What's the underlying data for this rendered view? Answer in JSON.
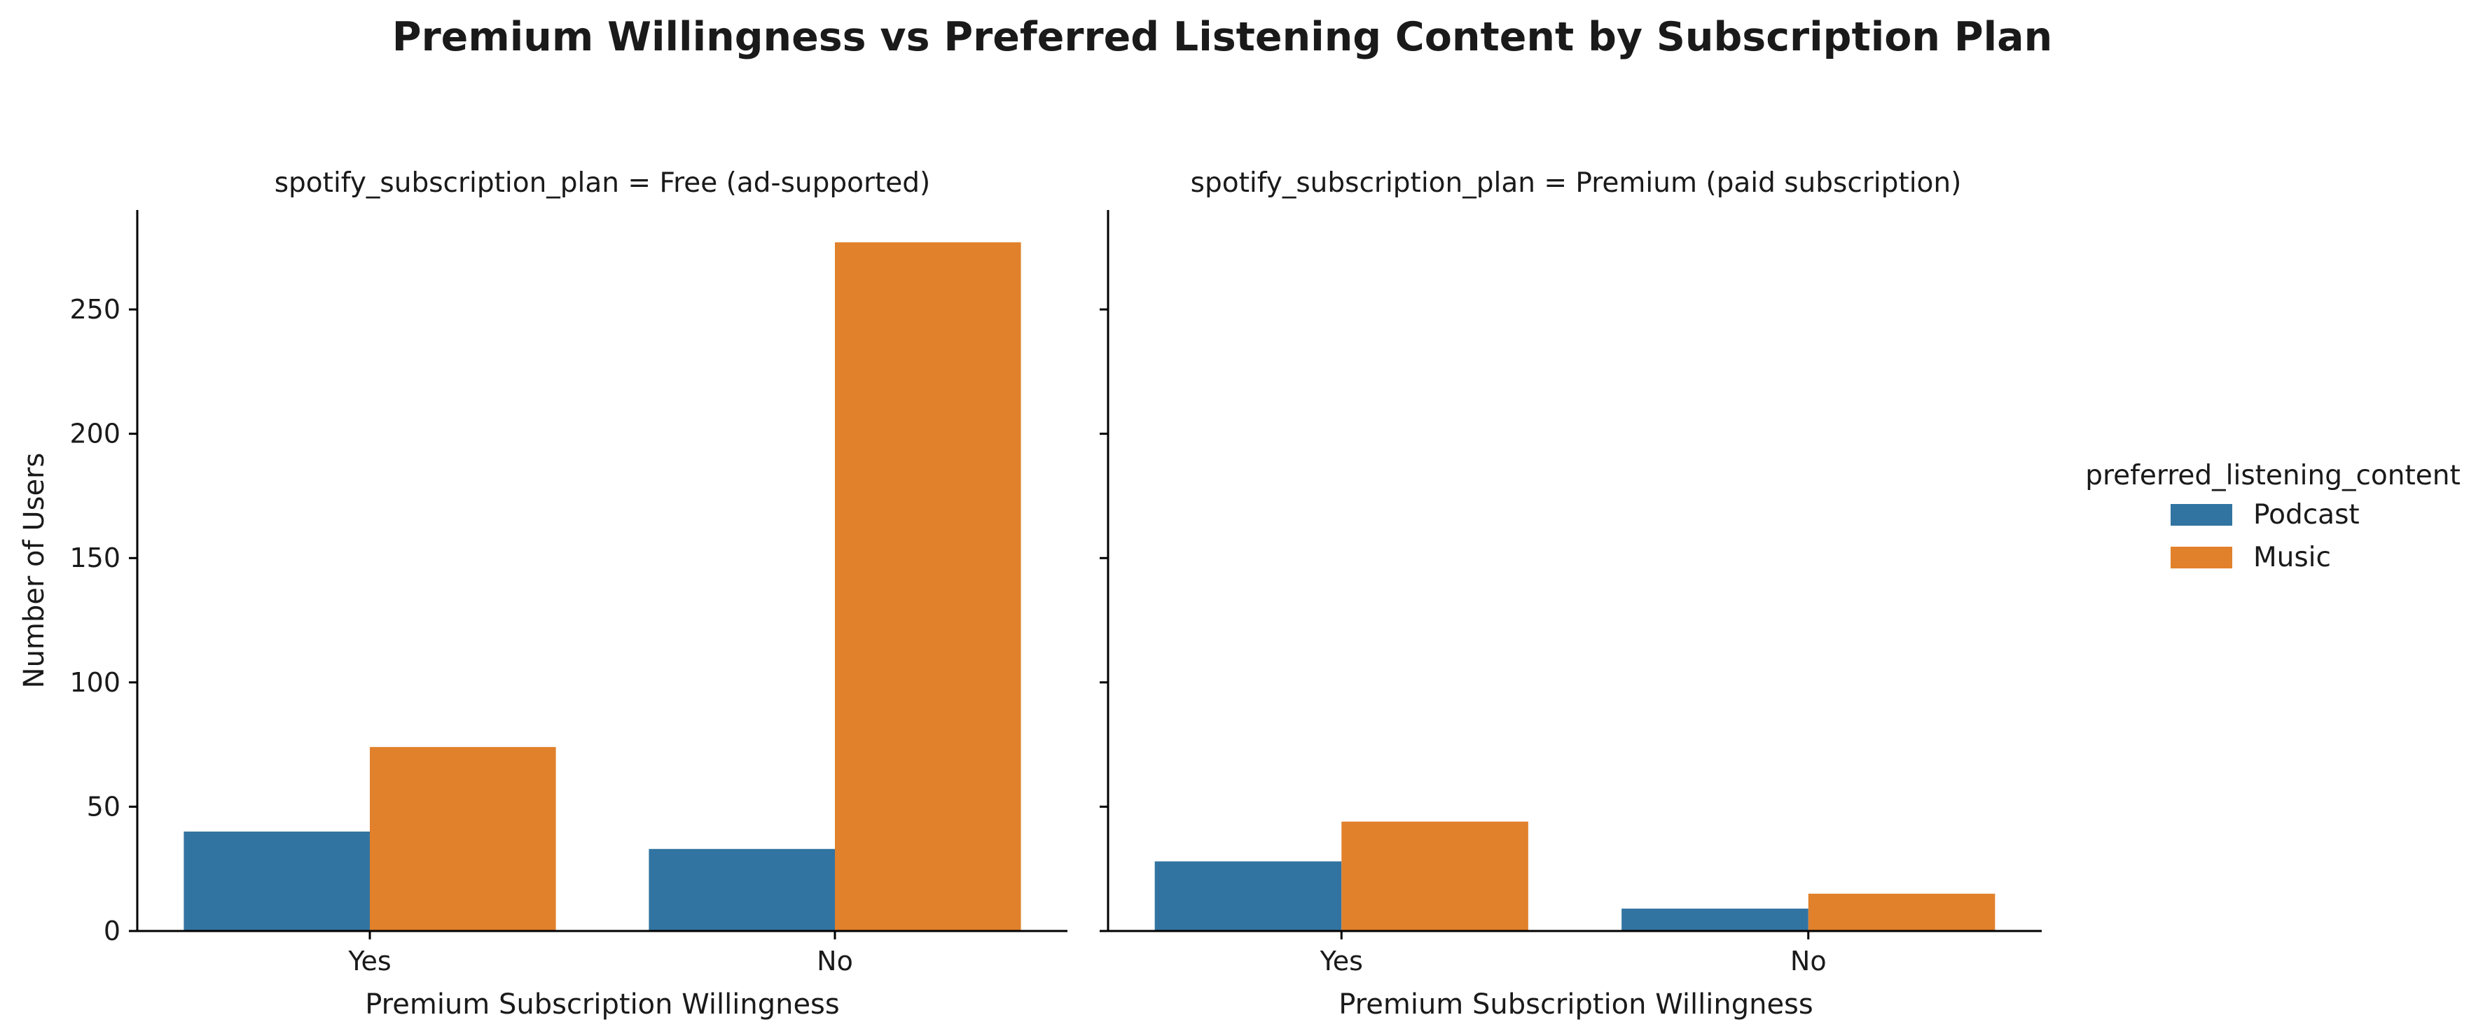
{
  "chart_data": {
    "type": "bar",
    "title": "Premium Willingness vs Preferred Listening Content by Subscription Plan",
    "xlabel": "Premium Subscription Willingness",
    "ylabel": "Number of Users",
    "ylim": [
      0,
      290
    ],
    "yticks": [
      0,
      50,
      100,
      150,
      200,
      250
    ],
    "categories": [
      "Yes",
      "No"
    ],
    "legend": {
      "title": "preferred_listening_content",
      "placement": "right",
      "entries": [
        {
          "name": "Podcast",
          "color": "#3274a1"
        },
        {
          "name": "Music",
          "color": "#e1812c"
        }
      ]
    },
    "facets": [
      {
        "title": "spotify_subscription_plan = Free (ad-supported)",
        "series": [
          {
            "name": "Podcast",
            "values": [
              40,
              33
            ]
          },
          {
            "name": "Music",
            "values": [
              74,
              277
            ]
          }
        ]
      },
      {
        "title": "spotify_subscription_plan = Premium (paid subscription)",
        "series": [
          {
            "name": "Podcast",
            "values": [
              28,
              9
            ]
          },
          {
            "name": "Music",
            "values": [
              44,
              15
            ]
          }
        ]
      }
    ],
    "grid": false
  }
}
